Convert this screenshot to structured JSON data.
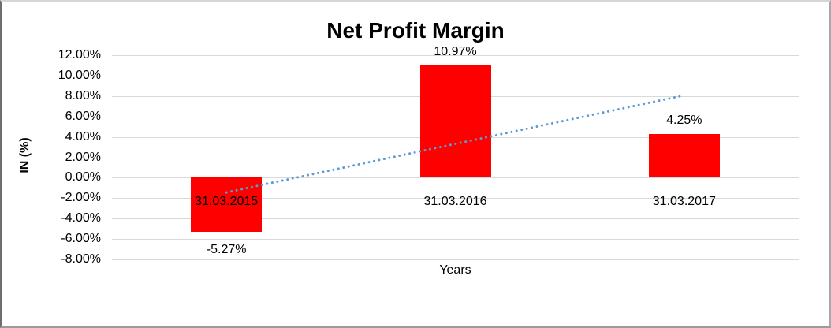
{
  "chart_data": {
    "type": "bar",
    "title": "Net Profit Margin",
    "categories": [
      "31.03.2015",
      "31.03.2016",
      "31.03.2017"
    ],
    "values": [
      -5.27,
      10.97,
      4.25
    ],
    "data_labels": [
      "-5.27%",
      "10.97%",
      "4.25%"
    ],
    "xlabel": "Years",
    "ylabel": "IN (%)",
    "ylim": [
      -8,
      12
    ],
    "ytick_step": 2,
    "ytick_labels": [
      "12.00%",
      "10.00%",
      "8.00%",
      "6.00%",
      "4.00%",
      "2.00%",
      "0.00%",
      "-2.00%",
      "-4.00%",
      "-6.00%",
      "-8.00%"
    ],
    "grid": true,
    "legend": "none",
    "colors": {
      "bar": "#ff0000",
      "trendline": "#5b9bd5",
      "gridline": "#d9d9d9",
      "text": "#000000"
    },
    "trendline": {
      "type": "linear",
      "style": "dotted",
      "start_value": -1.44,
      "end_value": 8.07
    }
  }
}
